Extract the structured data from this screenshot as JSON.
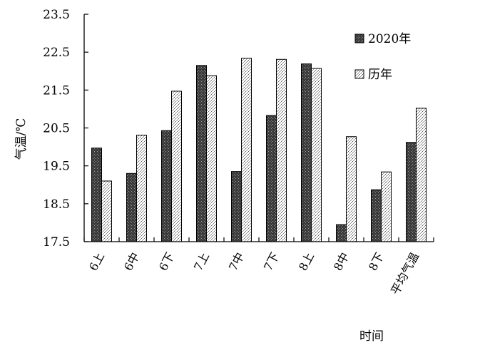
{
  "chart_data": {
    "type": "bar",
    "title": "",
    "xlabel": "时间",
    "ylabel": "气温/℃",
    "ylim": [
      17.5,
      23.5
    ],
    "yticks": [
      "17.5",
      "18.5",
      "19.5",
      "20.5",
      "21.5",
      "22.5",
      "23.5"
    ],
    "categories": [
      "6上",
      "6中",
      "6下",
      "7上",
      "7中",
      "7下",
      "8上",
      "8中",
      "8下",
      "平均气温"
    ],
    "series": [
      {
        "name": "2020年",
        "values": [
          19.97,
          19.3,
          20.43,
          22.15,
          19.35,
          20.83,
          22.19,
          17.95,
          18.87,
          20.12
        ],
        "pattern": "dark"
      },
      {
        "name": "历年",
        "values": [
          19.1,
          20.31,
          21.47,
          21.88,
          22.34,
          22.31,
          22.07,
          20.27,
          19.34,
          21.02
        ],
        "pattern": "light"
      }
    ],
    "grid": false,
    "legend": "top-right"
  }
}
